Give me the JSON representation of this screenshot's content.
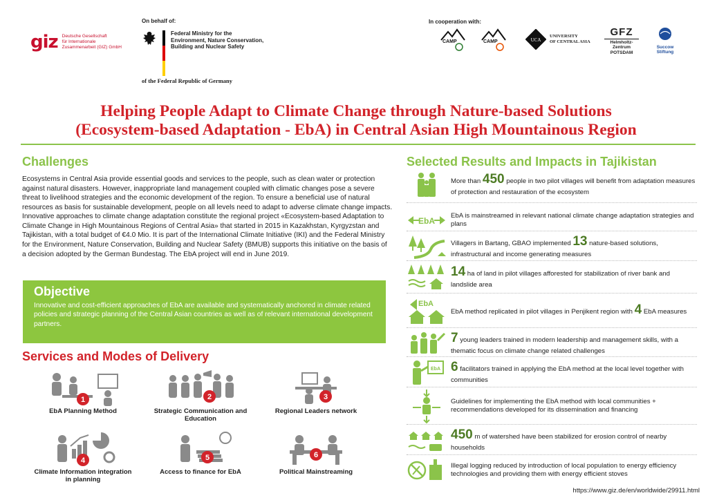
{
  "header": {
    "giz_mark": "giz",
    "giz_name": [
      "Deutsche Gesellschaft",
      "für Internationale",
      "Zusammenarbeit (GIZ) GmbH"
    ],
    "on_behalf": "On behalf of:",
    "ministry": [
      "Federal Ministry for the",
      "Environment, Nature Conservation,",
      "Building and Nuclear Safety"
    ],
    "federal": "of the Federal Republic of Germany",
    "coop": "In cooperation with:",
    "partners": {
      "camp1": "CAMP",
      "camp2": "CAMP",
      "uca_mark": "UCA",
      "uca": [
        "UNIVERSITY",
        "OF CENTRAL ASIA"
      ],
      "gfz": "GFZ",
      "gfz_sub": [
        "Helmholtz-Zentrum",
        "POTSDAM"
      ],
      "succow": [
        "Succow",
        "Stiftung"
      ]
    }
  },
  "title": {
    "line1": "Helping People Adapt  to Climate Change through Nature-based Solutions",
    "line2": "(Ecosystem-based Adaptation - EbA) in Central Asian High Mountainous Region"
  },
  "challenges": {
    "heading": "Challenges",
    "text": "Ecosystems in Central Asia provide essential goods and services to the people, such as clean water or protection against natural disasters. However, inappropriate land management coupled with climatic changes pose a severe threat to livelihood strategies and the economic development of the region. To ensure a beneficial use of natural resources as basis for sustainable development, people on all levels need to adapt to adverse climate change impacts. Innovative approaches to climate change adaptation constitute the regional project «Ecosystem-based Adaptation to Climate Change in High Mountainous Regions of Central Asia» that started in 2015 in Kazakhstan, Kyrgyzstan and Tajikistan, with a total budget of €4.0 Mio. It is part of the International Climate Initiative (IKI) and the Federal Ministry for the Environment, Nature Conservation, Building and Nuclear Safety (BMUB) supports this initiative on the basis of a decision adopted by the German Bundestag. The EbA project will end in June 2019."
  },
  "objective": {
    "heading": "Objective",
    "text": "Innovative and cost-efficient approaches of EbA are available and systematically anchored in climate related policies and strategic planning of the Central Asian countries as well as of relevant international development partners."
  },
  "services": {
    "heading": "Services and Modes of Delivery",
    "items": [
      {
        "num": "1",
        "label": "EbA Planning Method"
      },
      {
        "num": "2",
        "label": "Strategic Communication and Education"
      },
      {
        "num": "3",
        "label": "Regional Leaders network"
      },
      {
        "num": "4",
        "label": "Climate Information integration in planning"
      },
      {
        "num": "5",
        "label": "Access to finance for EbA"
      },
      {
        "num": "6",
        "label": "Political Mainstreaming"
      }
    ]
  },
  "results": {
    "heading": "Selected Results and Impacts in Tajikistan",
    "items": [
      {
        "pre": "More than ",
        "num": "450",
        "post": " people in two pilot villages will benefit from adaptation measures of protection and restauration of the ecosystem"
      },
      {
        "pre": "",
        "num": "",
        "post": "EbA is mainstreamed in relevant national climate change adaptation strategies and plans"
      },
      {
        "pre": "Villagers in Bartang, GBAO implemented ",
        "num": "13",
        "post": " nature-based solutions, infrastructural and income generating measures"
      },
      {
        "pre": "",
        "num": "14",
        "post": " ha of land in pilot villages afforested for stabilization of river bank and landslide area"
      },
      {
        "pre": "EbA method replicated in pilot villages in Penjikent region with ",
        "num": "4",
        "post": " EbA measures"
      },
      {
        "pre": "",
        "num": "7",
        "post": " young leaders trained in modern leadership and management skills, with a thematic focus on climate change related challenges"
      },
      {
        "pre": "",
        "num": "6",
        "post": " facilitators trained in applying the EbA method at the local level together with communities"
      },
      {
        "pre": "",
        "num": "",
        "post": "Guidelines for implementing the EbA method with local communities + recommendations developed for its dissemination and financing"
      },
      {
        "pre": "",
        "num": "450",
        "post": " m of watershed have been stabilized for erosion control of nearby households"
      },
      {
        "pre": "",
        "num": "",
        "post": "Illegal logging reduced by introduction of local population to energy efficiency technologies and providing them with energy efficient stoves"
      }
    ],
    "icon_labels": {
      "eba_arrows": "EbA",
      "eba_sign": "EbA",
      "eba_board": "EbA"
    }
  },
  "footer": {
    "url": "https://www.giz.de/en/worldwide/29911.html"
  },
  "colors": {
    "accent_red": "#d2232a",
    "accent_green": "#8bc34a",
    "objective_bg": "#8dc63f",
    "number_green": "#4d7b24",
    "icon_grey": "#8a8a8a"
  }
}
